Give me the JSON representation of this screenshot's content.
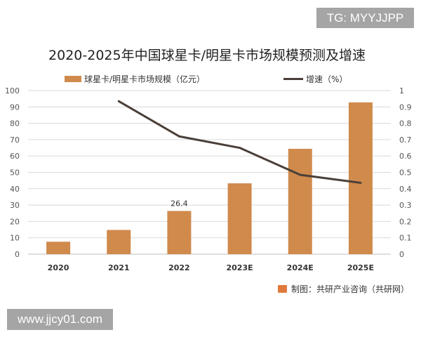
{
  "watermarks": {
    "tg": "TG: MYYJJPP",
    "site": "www.jjcy01.com"
  },
  "source": "制图：共研产业咨询（共研网）",
  "colors": {
    "bar": "#d08a4c",
    "line": "#4a3f38",
    "grid": "#d9d9d9"
  },
  "chart_data": {
    "type": "bar+line",
    "title": "2020-2025年中国球星卡/明星卡市场规模预测及增速",
    "categories": [
      "2020",
      "2021",
      "2022",
      "2023E",
      "2024E",
      "2025E"
    ],
    "series": [
      {
        "name": "球星卡/明星卡市场规模（亿元）",
        "type": "bar",
        "axis": "left",
        "values": [
          7.6,
          14.8,
          26.4,
          43.3,
          64.4,
          92.8
        ],
        "data_labels": [
          null,
          null,
          "26.4",
          null,
          null,
          null
        ]
      },
      {
        "name": "增速（%）",
        "type": "line",
        "axis": "right",
        "values": [
          null,
          0.935,
          0.72,
          0.65,
          0.485,
          0.436
        ]
      }
    ],
    "left_axis": {
      "ylim": [
        0,
        100
      ],
      "ticks": [
        "0",
        "10",
        "20",
        "30",
        "40",
        "50",
        "60",
        "70",
        "80",
        "90",
        "100"
      ]
    },
    "right_axis": {
      "ylim": [
        0,
        1
      ],
      "ticks": [
        "0",
        "0.1",
        "0.2",
        "0.3",
        "0.4",
        "0.5",
        "0.6",
        "0.7",
        "0.8",
        "0.9",
        "1"
      ]
    },
    "grid": true,
    "legend": "top"
  }
}
